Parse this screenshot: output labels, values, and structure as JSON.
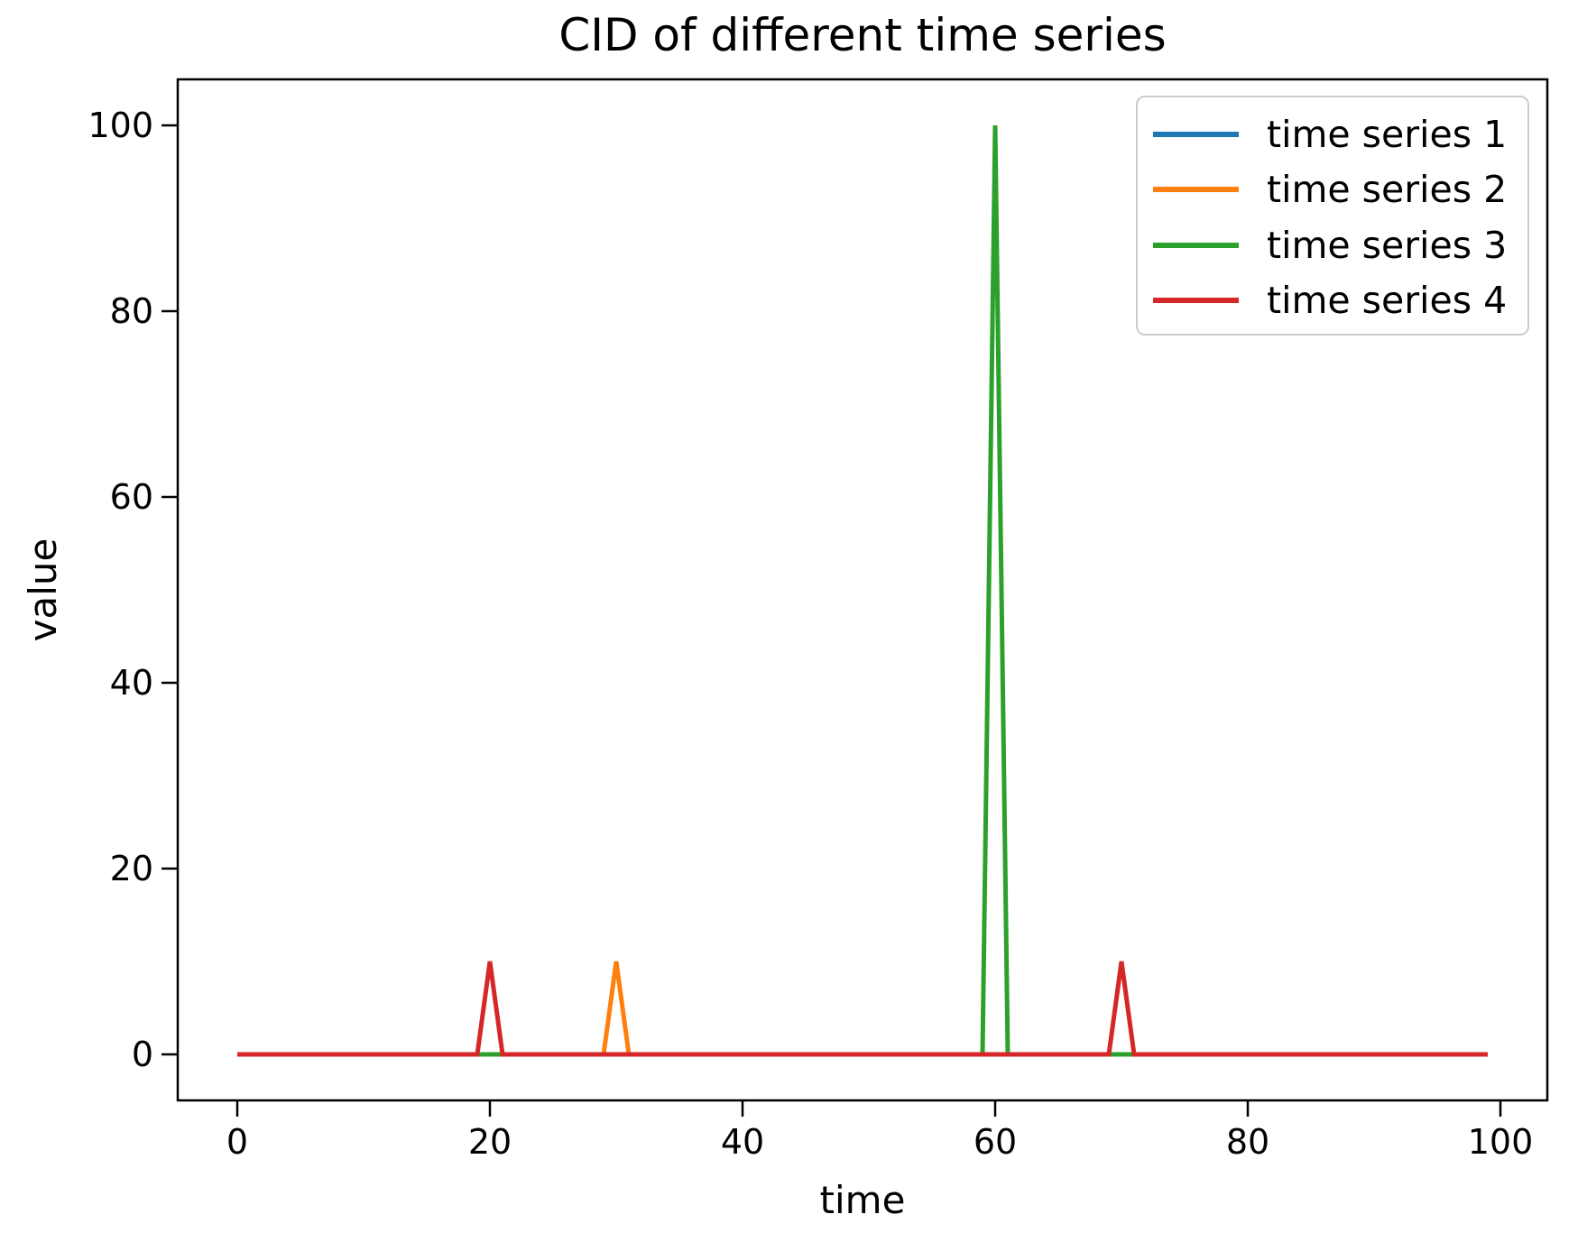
{
  "chart_data": {
    "type": "line",
    "title": "CID of different time series",
    "xlabel": "time",
    "ylabel": "value",
    "x_ticks": [
      0,
      20,
      40,
      60,
      80,
      100
    ],
    "y_ticks": [
      0,
      20,
      40,
      60,
      80,
      100
    ],
    "xlim": [
      -4.95,
      103.95
    ],
    "ylim": [
      -5,
      105
    ],
    "grid": false,
    "legend": {
      "position": "upper right"
    },
    "x_points": {
      "start": 0,
      "end": 99,
      "step": 1
    },
    "series": [
      {
        "name": "time series 1",
        "color": "#1f77b4",
        "baseline_value": 0,
        "spikes": []
      },
      {
        "name": "time series 2",
        "color": "#ff7f0e",
        "baseline_value": 0,
        "spikes": [
          {
            "x": 30,
            "value": 10
          }
        ]
      },
      {
        "name": "time series 3",
        "color": "#2ca02c",
        "baseline_value": 0,
        "spikes": [
          {
            "x": 60,
            "value": 100
          }
        ]
      },
      {
        "name": "time series 4",
        "color": "#d62728",
        "baseline_value": 0,
        "spikes": [
          {
            "x": 20,
            "value": 10
          },
          {
            "x": 70,
            "value": 10
          }
        ]
      }
    ]
  }
}
